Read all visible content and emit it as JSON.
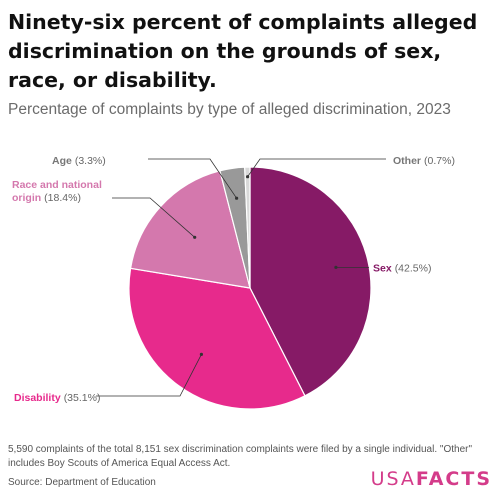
{
  "title": "Ninety-six percent of complaints alleged discrimination on the grounds of sex, race, or disability.",
  "subtitle": "Percentage of complaints by type of alleged discrimination, 2023",
  "footnote": "5,590 complaints of the total 8,151 sex discrimination complaints were filed by a single individual. \"Other\" includes Boy Scouts of America Equal Access Act.",
  "source": "Source: Department of Education",
  "logo": {
    "part1": "USA",
    "part2": "FACTS"
  },
  "chart_data": {
    "type": "pie",
    "title": "Ninety-six percent of complaints alleged discrimination on the grounds of sex, race, or disability.",
    "subtitle": "Percentage of complaints by type of alleged discrimination, 2023",
    "unit": "%",
    "slices": [
      {
        "name": "Sex",
        "value": 42.5,
        "value_label": "(42.5%)",
        "color": "#861a66"
      },
      {
        "name": "Disability",
        "value": 35.1,
        "value_label": "(35.1%)",
        "color": "#e72a8c"
      },
      {
        "name": "Race and national origin",
        "name_lines": [
          "Race and national",
          "origin"
        ],
        "value": 18.4,
        "value_label": "(18.4%)",
        "color": "#d478ad"
      },
      {
        "name": "Age",
        "value": 3.3,
        "value_label": "(3.3%)",
        "color": "#999999"
      },
      {
        "name": "Other",
        "value": 0.7,
        "value_label": "(0.7%)",
        "color": "#d9d9d9"
      }
    ]
  }
}
